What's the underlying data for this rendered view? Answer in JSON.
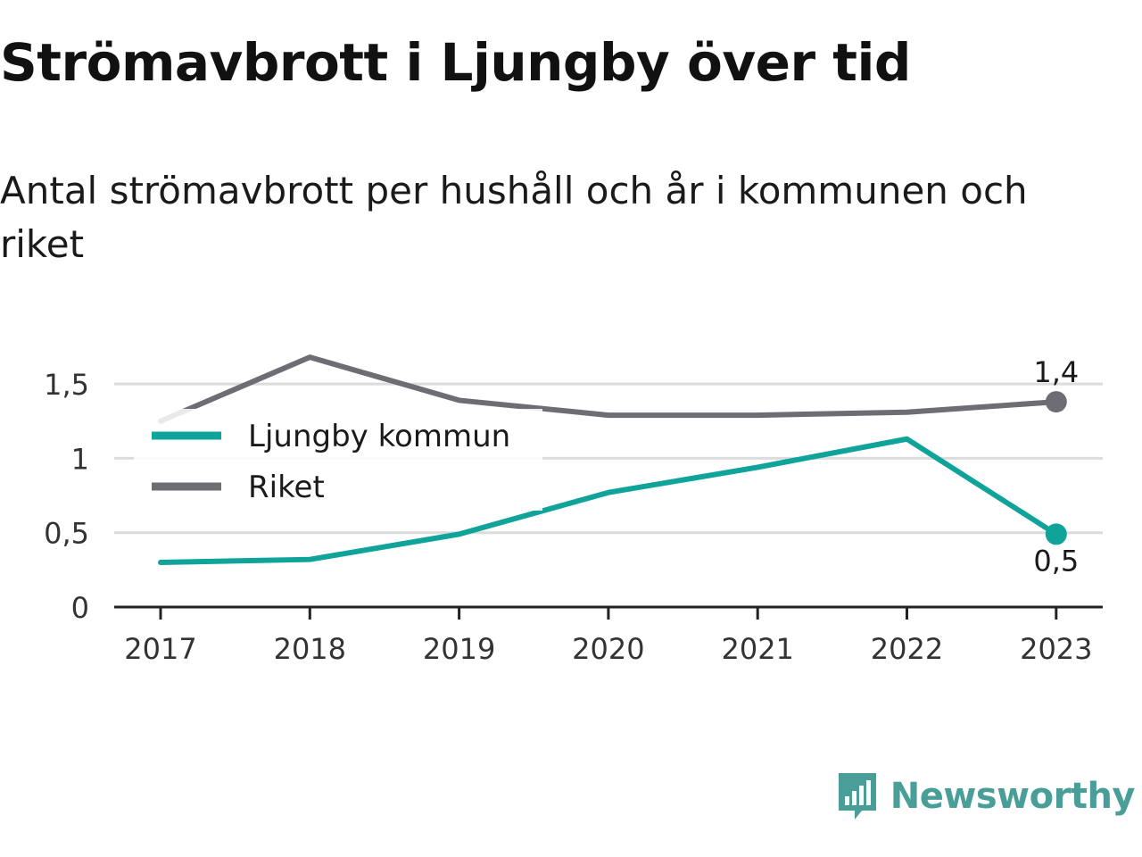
{
  "title": "Strömavbrott i Ljungby över tid",
  "subtitle": "Antal strömavbrott per hushåll och år i kommunen och riket",
  "brand": {
    "name": "Newsworthy",
    "icon": "newsworthy-logo-icon",
    "color": "#4a9e98"
  },
  "chart_data": {
    "type": "line",
    "x": [
      "2017",
      "2018",
      "2019",
      "2020",
      "2021",
      "2022",
      "2023"
    ],
    "y_ticks": [
      "0",
      "0,5",
      "1",
      "1,5"
    ],
    "y_tick_values": [
      0,
      0.5,
      1,
      1.5
    ],
    "ylim": [
      0,
      1.7
    ],
    "grid": true,
    "legend_position": "top-left",
    "series": [
      {
        "name": "Ljungby kommun",
        "color": "#10a39a",
        "values": [
          0.3,
          0.32,
          0.49,
          0.77,
          0.94,
          1.13,
          0.49
        ],
        "end_label": "0,5"
      },
      {
        "name": "Riket",
        "color": "#6e6d73",
        "values": [
          1.25,
          1.68,
          1.39,
          1.29,
          1.29,
          1.31,
          1.38
        ],
        "end_label": "1,4"
      }
    ]
  }
}
